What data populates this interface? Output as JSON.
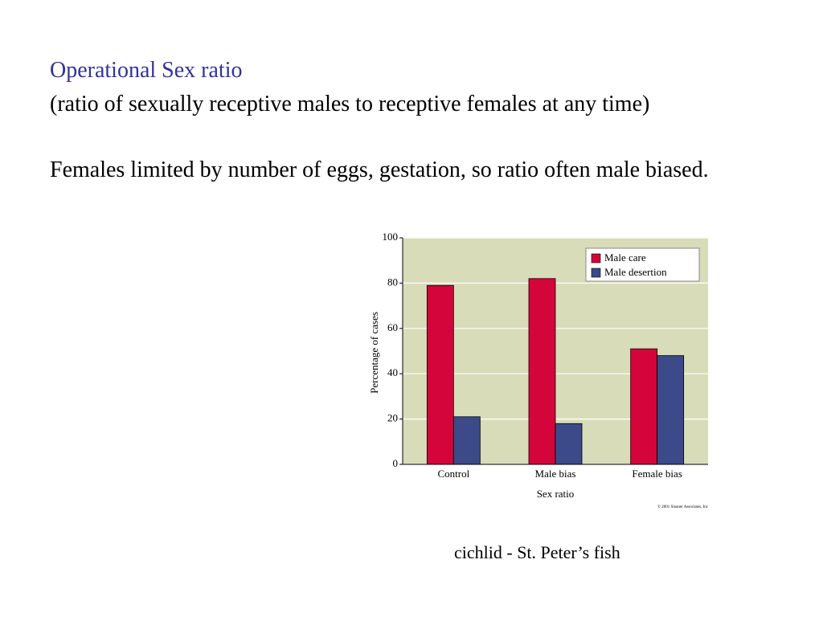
{
  "slide": {
    "title": "Operational Sex ratio",
    "subtitle": "(ratio of sexually receptive males to receptive females at any time)",
    "body": "Females limited by number of eggs, gestation, so ratio often male biased.",
    "caption": "cichlid - St. Peter’s fish"
  },
  "chart_data": {
    "type": "bar",
    "categories": [
      "Control",
      "Male bias",
      "Female bias"
    ],
    "series": [
      {
        "name": "Male care",
        "color": "#d4053a",
        "values": [
          79,
          82,
          51
        ]
      },
      {
        "name": "Male desertion",
        "color": "#3c4a8a",
        "values": [
          21,
          18,
          48
        ]
      }
    ],
    "xlabel": "Sex ratio",
    "ylabel": "Percentage of cases",
    "ylim": [
      0,
      100
    ],
    "yticks": [
      0,
      20,
      40,
      60,
      80,
      100
    ],
    "grid": true,
    "legend": "upper right",
    "background": "#d9dcb9",
    "credit": "© 2001 Sinauer Associates, Inc"
  }
}
